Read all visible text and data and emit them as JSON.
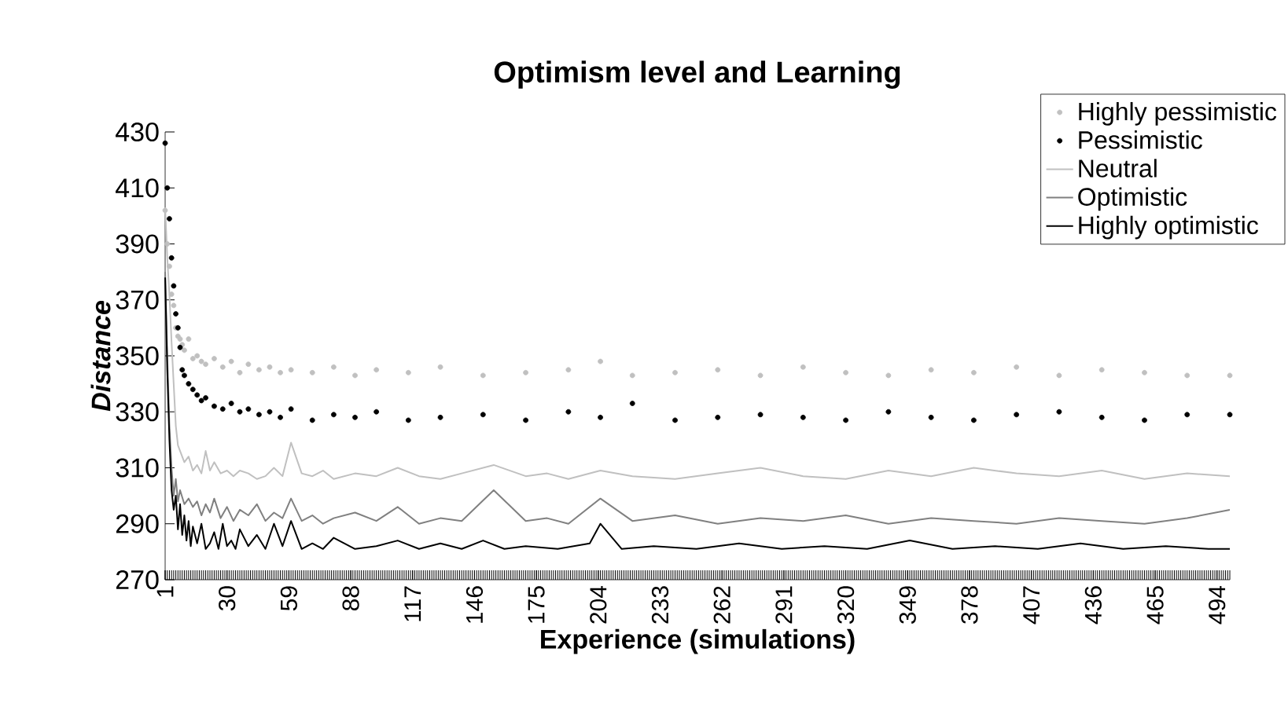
{
  "chart_data": {
    "type": "line",
    "title": "Optimism level and Learning",
    "xlabel": "Experience (simulations)",
    "ylabel": "Distance",
    "xlim": [
      1,
      500
    ],
    "xticks": [
      1,
      30,
      59,
      88,
      117,
      146,
      175,
      204,
      233,
      262,
      291,
      320,
      349,
      378,
      407,
      436,
      465,
      494
    ],
    "ylim": [
      270,
      430
    ],
    "yticks": [
      270,
      290,
      310,
      330,
      350,
      370,
      390,
      410,
      430
    ],
    "grid": false,
    "legend": "top right",
    "series": [
      {
        "name": "Highly pessimistic",
        "type": "scatter",
        "marker": "circle",
        "color": "#c0c0c0",
        "x": [
          1,
          2,
          3,
          4,
          5,
          6,
          7,
          8,
          9,
          10,
          12,
          14,
          16,
          18,
          20,
          24,
          28,
          32,
          36,
          40,
          45,
          50,
          55,
          60,
          70,
          80,
          90,
          100,
          115,
          130,
          150,
          170,
          190,
          205,
          220,
          240,
          260,
          280,
          300,
          320,
          340,
          360,
          380,
          400,
          420,
          440,
          460,
          480,
          500
        ],
        "values": [
          402,
          390,
          382,
          372,
          368,
          360,
          357,
          356,
          354,
          352,
          356,
          349,
          350,
          348,
          347,
          349,
          346,
          348,
          344,
          347,
          345,
          346,
          344,
          345,
          344,
          346,
          343,
          345,
          344,
          346,
          343,
          344,
          345,
          348,
          343,
          344,
          345,
          343,
          346,
          344,
          343,
          345,
          344,
          346,
          343,
          345,
          344,
          343,
          343
        ]
      },
      {
        "name": "Pessimistic",
        "type": "scatter",
        "marker": "circle",
        "color": "#000000",
        "x": [
          1,
          2,
          3,
          4,
          5,
          6,
          7,
          8,
          9,
          10,
          12,
          14,
          16,
          18,
          20,
          24,
          28,
          32,
          36,
          40,
          45,
          50,
          55,
          60,
          70,
          80,
          90,
          100,
          115,
          130,
          150,
          170,
          190,
          205,
          220,
          240,
          260,
          280,
          300,
          320,
          340,
          360,
          380,
          400,
          420,
          440,
          460,
          480,
          500
        ],
        "values": [
          426,
          410,
          399,
          385,
          375,
          365,
          360,
          353,
          345,
          343,
          340,
          338,
          336,
          334,
          335,
          332,
          331,
          333,
          330,
          331,
          329,
          330,
          328,
          331,
          327,
          329,
          328,
          330,
          327,
          328,
          329,
          327,
          330,
          328,
          333,
          327,
          328,
          329,
          328,
          327,
          330,
          328,
          327,
          329,
          330,
          328,
          327,
          329,
          329
        ]
      },
      {
        "name": "Neutral",
        "color": "#c0c0c0",
        "x": [
          1,
          2,
          3,
          4,
          5,
          6,
          7,
          8,
          10,
          12,
          14,
          16,
          18,
          20,
          22,
          24,
          27,
          30,
          33,
          36,
          40,
          44,
          48,
          52,
          56,
          60,
          65,
          70,
          75,
          80,
          90,
          100,
          110,
          120,
          130,
          140,
          155,
          170,
          180,
          190,
          205,
          220,
          240,
          260,
          280,
          300,
          320,
          340,
          360,
          380,
          400,
          420,
          440,
          460,
          480,
          500
        ],
        "values": [
          403,
          385,
          372,
          355,
          340,
          325,
          318,
          316,
          312,
          314,
          309,
          311,
          308,
          316,
          309,
          312,
          308,
          309,
          307,
          309,
          308,
          306,
          307,
          310,
          307,
          319,
          308,
          307,
          309,
          306,
          308,
          307,
          310,
          307,
          306,
          308,
          311,
          307,
          308,
          306,
          309,
          307,
          306,
          308,
          310,
          307,
          306,
          309,
          307,
          310,
          308,
          307,
          309,
          306,
          308,
          307
        ]
      },
      {
        "name": "Optimistic",
        "color": "#808080",
        "x": [
          1,
          2,
          3,
          4,
          5,
          6,
          7,
          8,
          10,
          12,
          14,
          16,
          18,
          20,
          22,
          24,
          27,
          30,
          33,
          36,
          40,
          44,
          48,
          52,
          56,
          60,
          65,
          70,
          75,
          80,
          90,
          100,
          110,
          120,
          130,
          140,
          155,
          170,
          180,
          190,
          205,
          220,
          240,
          260,
          280,
          300,
          320,
          340,
          360,
          380,
          400,
          420,
          440,
          460,
          480,
          500
        ],
        "values": [
          380,
          350,
          325,
          310,
          300,
          306,
          298,
          302,
          297,
          299,
          296,
          298,
          293,
          297,
          294,
          299,
          292,
          296,
          291,
          295,
          293,
          297,
          291,
          294,
          292,
          299,
          291,
          293,
          290,
          292,
          294,
          291,
          296,
          290,
          292,
          291,
          302,
          291,
          292,
          290,
          299,
          291,
          293,
          290,
          292,
          291,
          293,
          290,
          292,
          291,
          290,
          292,
          291,
          290,
          292,
          295
        ]
      },
      {
        "name": "Highly optimistic",
        "color": "#000000",
        "x": [
          1,
          2,
          3,
          4,
          5,
          6,
          7,
          8,
          9,
          10,
          11,
          12,
          13,
          14,
          16,
          18,
          20,
          22,
          24,
          26,
          28,
          30,
          32,
          34,
          36,
          40,
          44,
          48,
          52,
          56,
          60,
          65,
          70,
          75,
          80,
          90,
          100,
          110,
          120,
          130,
          140,
          150,
          160,
          170,
          185,
          200,
          205,
          215,
          230,
          250,
          270,
          290,
          310,
          330,
          350,
          370,
          390,
          410,
          430,
          450,
          470,
          490,
          500
        ],
        "values": [
          378,
          345,
          320,
          302,
          295,
          300,
          288,
          297,
          286,
          293,
          284,
          291,
          282,
          289,
          283,
          290,
          281,
          283,
          287,
          281,
          290,
          282,
          284,
          281,
          288,
          282,
          286,
          281,
          290,
          282,
          291,
          281,
          283,
          281,
          285,
          281,
          282,
          284,
          281,
          283,
          281,
          284,
          281,
          282,
          281,
          283,
          290,
          281,
          282,
          281,
          283,
          281,
          282,
          281,
          284,
          281,
          282,
          281,
          283,
          281,
          282,
          281,
          281
        ]
      }
    ]
  }
}
